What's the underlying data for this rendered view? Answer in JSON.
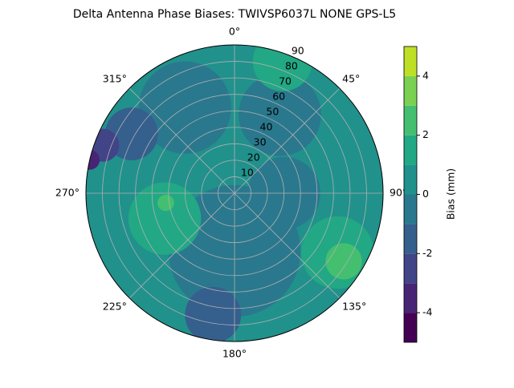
{
  "chart_data": {
    "type": "polar-contour",
    "title": "Delta Antenna Phase Biases: TWIVSP6037L     NONE GPS-L5",
    "thetaticks": [
      {
        "value": 0,
        "label": "0°"
      },
      {
        "value": 45,
        "label": "45°"
      },
      {
        "value": 90,
        "label": "90°"
      },
      {
        "value": 135,
        "label": "135°"
      },
      {
        "value": 180,
        "label": "180°"
      },
      {
        "value": 225,
        "label": "225°"
      },
      {
        "value": 270,
        "label": "270°"
      },
      {
        "value": 315,
        "label": "315°"
      }
    ],
    "rlim": [
      0,
      90
    ],
    "rticks": [
      10,
      20,
      30,
      40,
      50,
      60,
      70,
      80,
      90
    ],
    "grid": true,
    "levels": [
      -5,
      -4,
      -3,
      -2,
      -1,
      0,
      1,
      2,
      3,
      4,
      5
    ],
    "colors": [
      "#440154",
      "#482475",
      "#414487",
      "#355f8d",
      "#2a788e",
      "#21918c",
      "#22a884",
      "#44bf70",
      "#7ad151",
      "#bddf26",
      "#fde725"
    ],
    "regions": [
      {
        "az": 0,
        "r": 0,
        "size": 90,
        "value": 0
      },
      {
        "az": 330,
        "r": 60,
        "size": 28,
        "value": -1
      },
      {
        "az": 30,
        "r": 55,
        "size": 25,
        "value": -1
      },
      {
        "az": 180,
        "r": 35,
        "size": 40,
        "value": -1
      },
      {
        "az": 90,
        "r": 30,
        "size": 22,
        "value": -1
      },
      {
        "az": 20,
        "r": 85,
        "size": 18,
        "value": 1
      },
      {
        "az": 250,
        "r": 45,
        "size": 22,
        "value": 1
      },
      {
        "az": 120,
        "r": 72,
        "size": 22,
        "value": 1
      },
      {
        "az": 122,
        "r": 78,
        "size": 11,
        "value": 2
      },
      {
        "az": 262,
        "r": 42,
        "size": 5,
        "value": 2
      },
      {
        "az": 190,
        "r": 75,
        "size": 17,
        "value": -2
      },
      {
        "az": 300,
        "r": 72,
        "size": 16,
        "value": -2
      },
      {
        "az": 290,
        "r": 85,
        "size": 10,
        "value": -3
      },
      {
        "az": 283,
        "r": 90,
        "size": 6,
        "value": -4
      }
    ],
    "colorbar_label": "Bias (mm)",
    "cticks": [
      -4,
      -2,
      0,
      2,
      4
    ],
    "clim": [
      -5,
      5
    ]
  }
}
